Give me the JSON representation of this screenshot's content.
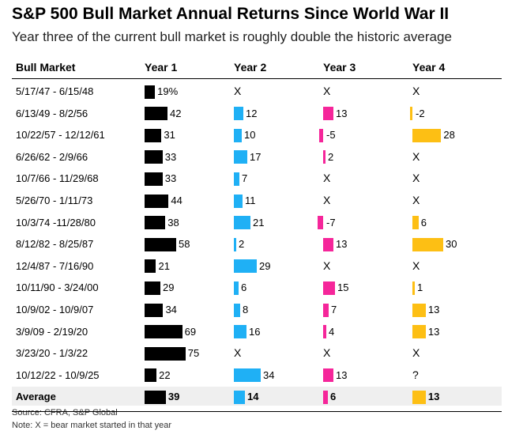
{
  "title": "S&P 500 Bull Market Annual Returns Since World War II",
  "subtitle": "Year three of the current bull market is roughly double the historic average",
  "source": "Source: CFRA, S&P Global",
  "note": "Note: X = bear market started in that year",
  "colors": {
    "year1": "#000000",
    "year2": "#1fb0f5",
    "year3": "#f5269a",
    "year4": "#fdbf14",
    "average_bg": "#efefef"
  },
  "chart_data": {
    "type": "table",
    "columns": [
      "Bull Market",
      "Year 1",
      "Year 2",
      "Year 3",
      "Year 4"
    ],
    "rows": [
      {
        "period": "5/17/47 - 6/15/48",
        "values": [
          19,
          "X",
          "X",
          "X"
        ]
      },
      {
        "period": "6/13/49 - 8/2/56",
        "values": [
          42,
          12,
          13,
          -2
        ]
      },
      {
        "period": "10/22/57 - 12/12/61",
        "values": [
          31,
          10,
          -5,
          28
        ]
      },
      {
        "period": "6/26/62 - 2/9/66",
        "values": [
          33,
          17,
          2,
          "X"
        ]
      },
      {
        "period": "10/7/66 - 11/29/68",
        "values": [
          33,
          7,
          "X",
          "X"
        ]
      },
      {
        "period": "5/26/70 - 1/11/73",
        "values": [
          44,
          11,
          "X",
          "X"
        ]
      },
      {
        "period": "10/3/74 -11/28/80",
        "values": [
          38,
          21,
          -7,
          6
        ]
      },
      {
        "period": "8/12/82 - 8/25/87",
        "values": [
          58,
          2,
          13,
          30
        ]
      },
      {
        "period": "12/4/87 - 7/16/90",
        "values": [
          21,
          29,
          "X",
          "X"
        ]
      },
      {
        "period": "10/11/90 - 3/24/00",
        "values": [
          29,
          6,
          15,
          1
        ]
      },
      {
        "period": "10/9/02 - 10/9/07",
        "values": [
          34,
          8,
          7,
          13
        ]
      },
      {
        "period": "3/9/09 - 2/19/20",
        "values": [
          69,
          16,
          4,
          13
        ]
      },
      {
        "period": "3/23/20 - 1/3/22",
        "values": [
          75,
          "X",
          "X",
          "X"
        ]
      },
      {
        "period": "10/12/22 - 10/9/25",
        "values": [
          22,
          34,
          13,
          "?"
        ]
      }
    ],
    "average": {
      "period": "Average",
      "values": [
        39,
        14,
        6,
        13
      ]
    },
    "value_suffix_first_row_year1": "%"
  }
}
